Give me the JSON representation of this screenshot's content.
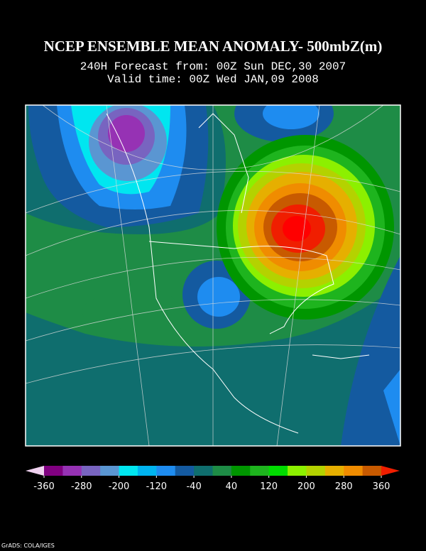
{
  "header": {
    "title": "NCEP ENSEMBLE MEAN ANOMALY- 500mbZ(m)",
    "subtitle_lines": [
      "240H Forecast from: 00Z Sun DEC,30 2007",
      "Valid time: 00Z Wed JAN,09 2008"
    ]
  },
  "colorbar": {
    "ticks": [
      -360,
      -280,
      -200,
      -120,
      -40,
      40,
      120,
      200,
      280,
      360
    ],
    "lim": [
      -360,
      360
    ],
    "colors": [
      "#800080",
      "#9632b4",
      "#7864c0",
      "#5a96d2",
      "#00e6f0",
      "#00b4f0",
      "#1e8cf0",
      "#145aa0",
      "#0f6e6e",
      "#1e8c46",
      "#009600",
      "#1eb41e",
      "#00dc00",
      "#8cf000",
      "#b4d200",
      "#e6af00",
      "#f08c00",
      "#c85a00",
      "#f01e00"
    ],
    "low_color": "#f0d2f0",
    "high_color": "#ff0000"
  },
  "footer": "GrADS: COLA/IGES"
}
